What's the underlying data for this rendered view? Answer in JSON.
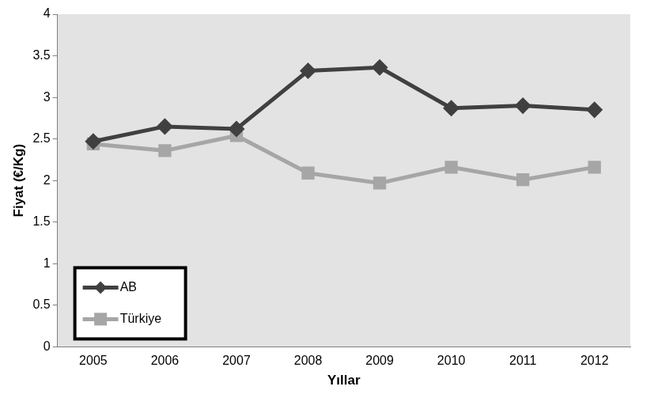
{
  "chart_data": {
    "type": "line",
    "x_label": "Yıllar",
    "y_label": "Fiyat (€/Kg)",
    "categories": [
      "2005",
      "2006",
      "2007",
      "2008",
      "2009",
      "2010",
      "2011",
      "2012"
    ],
    "series": [
      {
        "name": "AB",
        "color": "#404040",
        "marker": "diamond",
        "values": [
          2.47,
          2.65,
          2.62,
          3.32,
          3.36,
          2.87,
          2.9,
          2.85
        ]
      },
      {
        "name": "Türkiye",
        "color": "#a6a6a6",
        "marker": "square",
        "values": [
          2.44,
          2.36,
          2.54,
          2.09,
          1.97,
          2.16,
          2.01,
          2.16
        ]
      }
    ],
    "ylim": [
      0,
      4
    ],
    "yticks": [
      0,
      0.5,
      1,
      1.5,
      2,
      2.5,
      3,
      3.5,
      4
    ],
    "grid": false,
    "legend": "lower left"
  }
}
